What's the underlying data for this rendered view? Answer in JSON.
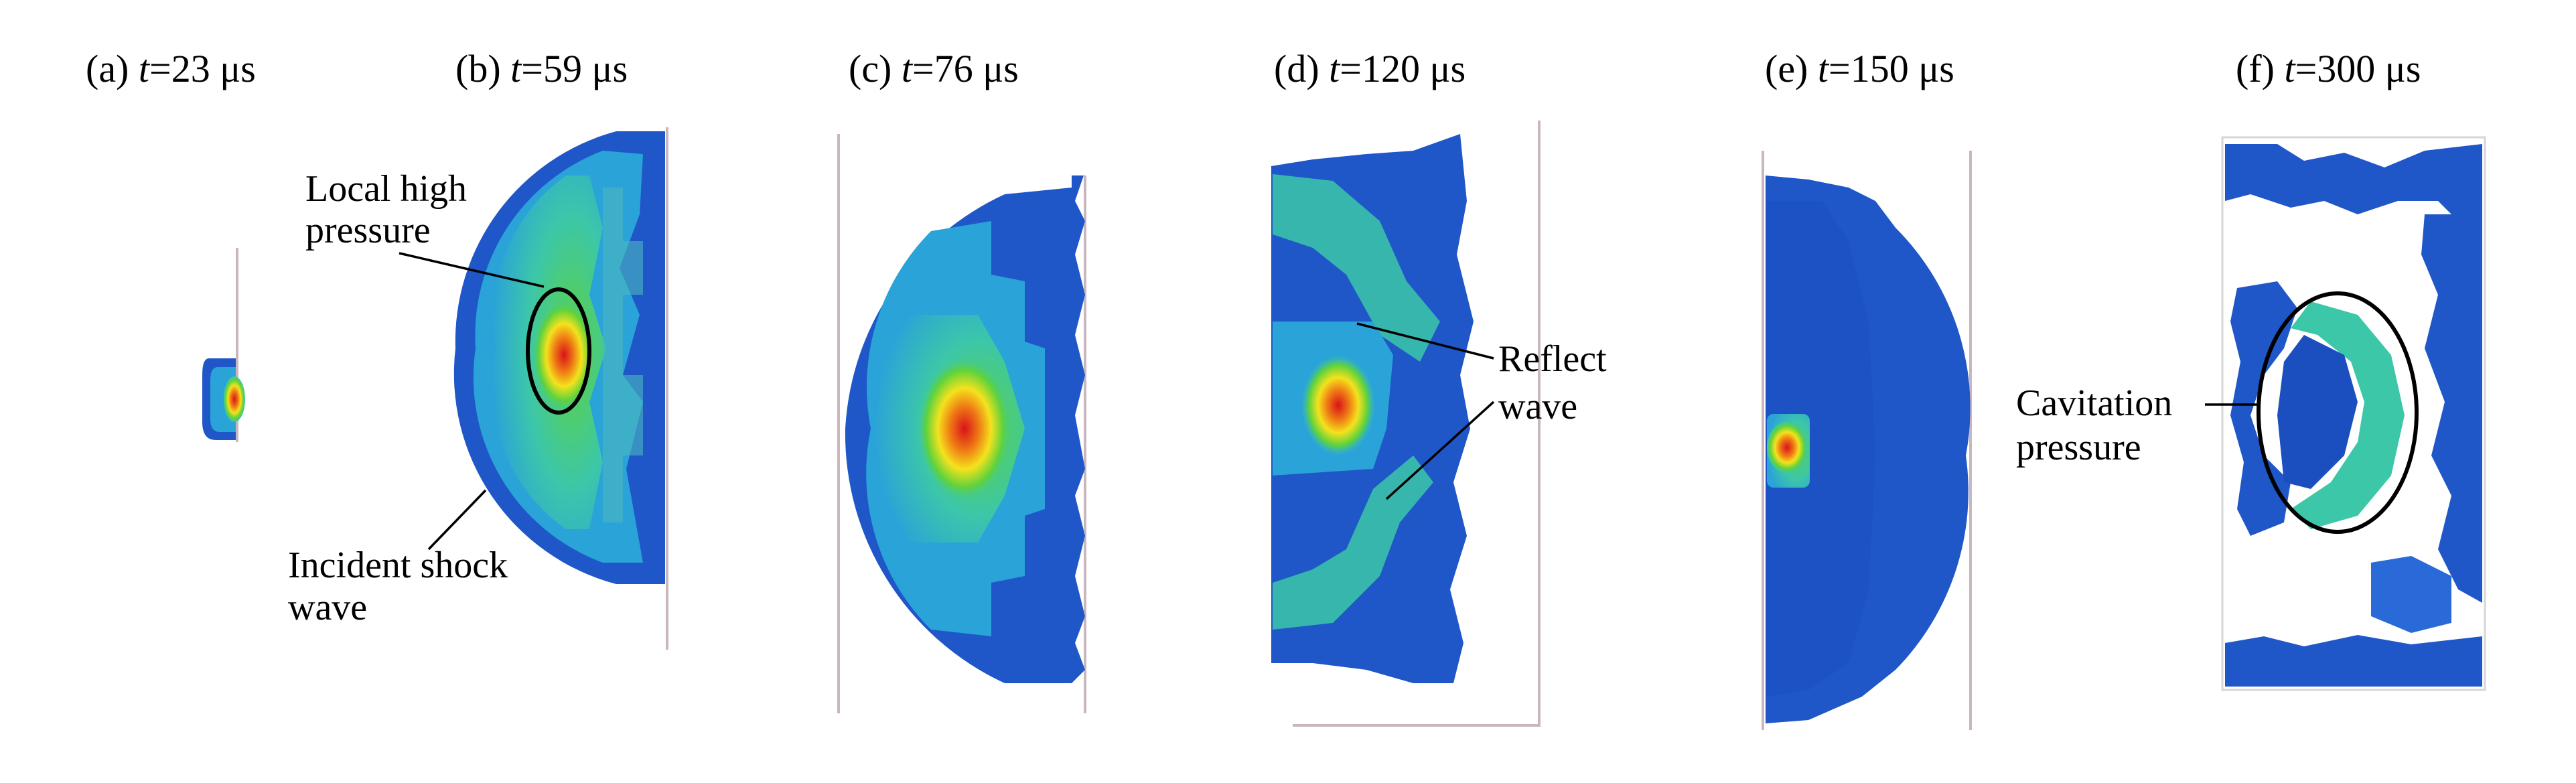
{
  "panels": [
    {
      "label_prefix": "(a) ",
      "var": "t",
      "label_value": "=23 μs"
    },
    {
      "label_prefix": "(b) ",
      "var": "t",
      "label_value": "=59 μs"
    },
    {
      "label_prefix": "(c) ",
      "var": "t",
      "label_value": "=76 μs"
    },
    {
      "label_prefix": "(d) ",
      "var": "t",
      "label_value": "=120 μs"
    },
    {
      "label_prefix": "(e) ",
      "var": "t",
      "label_value": "=150 μs"
    },
    {
      "label_prefix": "(f) ",
      "var": "t",
      "label_value": "=300 μs"
    }
  ],
  "annotations": {
    "local_high_pressure": [
      "Local high",
      "pressure"
    ],
    "incident_shock_wave": [
      "Incident shock",
      "wave"
    ],
    "reflect_wave": [
      "Reflect",
      "wave"
    ],
    "cavitation_pressure": [
      "Cavitation",
      "pressure"
    ]
  },
  "colors": {
    "low": "#1f57c8",
    "mid_low": "#2aa3d8",
    "mid": "#3cc7a9",
    "mid_high": "#5fd23c",
    "high": "#f4e21d",
    "very_high": "#ef7a14",
    "peak": "#d9121b"
  }
}
